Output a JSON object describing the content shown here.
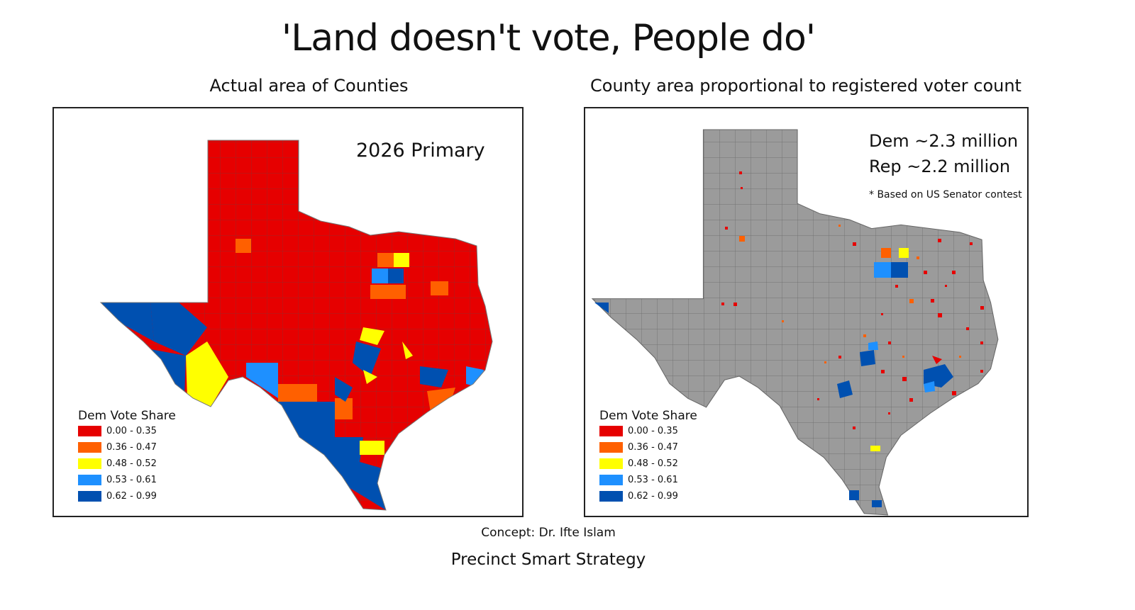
{
  "title": "'Land doesn't vote, People do'",
  "left_map": {
    "subtitle": "Actual area of Counties",
    "label": "2026 Primary"
  },
  "right_map": {
    "subtitle": "County area proportional to registered voter count",
    "dem": "Dem ~2.3 million",
    "rep": "Rep ~2.2 million",
    "note": "* Based on US Senator contest"
  },
  "legend": {
    "title": "Dem Vote Share",
    "items": [
      {
        "label": "0.00 - 0.35",
        "color": "#e60000"
      },
      {
        "label": "0.36 - 0.47",
        "color": "#ff6000"
      },
      {
        "label": "0.48 - 0.52",
        "color": "#ffff00"
      },
      {
        "label": "0.53 - 0.61",
        "color": "#1e90ff"
      },
      {
        "label": "0.62 - 0.99",
        "color": "#0050b0"
      }
    ]
  },
  "footer": {
    "concept": "Concept: Dr. Ifte Islam",
    "org": "Precinct Smart Strategy"
  }
}
